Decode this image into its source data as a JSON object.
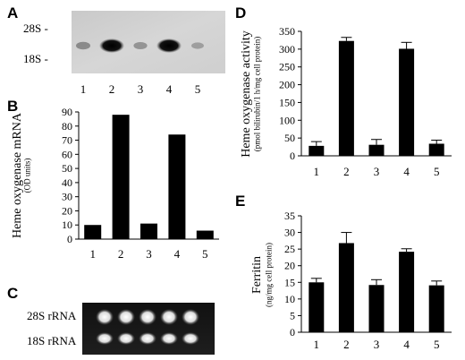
{
  "panels": {
    "A": {
      "letter": "A",
      "marker_28s": "28S -",
      "marker_18s": "18S -",
      "lanes": [
        "1",
        "2",
        "3",
        "4",
        "5"
      ],
      "band_intensity": [
        0.25,
        1.0,
        0.2,
        1.0,
        0.12
      ]
    },
    "C": {
      "letter": "C",
      "label_28s": "28S rRNA",
      "label_18s": "18S rRNA"
    }
  },
  "chart_data": [
    {
      "panel": "B",
      "type": "bar",
      "categories": [
        "1",
        "2",
        "3",
        "4",
        "5"
      ],
      "values": [
        10,
        88,
        11,
        74,
        6
      ],
      "ylabel": "Heme oxygenase mRNA",
      "ylabel_sub": "(OD units)",
      "ylim": [
        0,
        90
      ],
      "yticks": [
        0,
        10,
        20,
        30,
        40,
        50,
        60,
        70,
        80,
        90
      ],
      "grid": false
    },
    {
      "panel": "D",
      "type": "bar",
      "categories": [
        "1",
        "2",
        "3",
        "4",
        "5"
      ],
      "values": [
        28,
        323,
        31,
        301,
        34
      ],
      "errors": [
        12,
        10,
        15,
        18,
        10
      ],
      "ylabel": "Heme oxygenase activity",
      "ylabel_sub": "(pmol bilirubin/1 h/mg cell protein)",
      "ylim": [
        0,
        350
      ],
      "yticks": [
        0,
        50,
        100,
        150,
        200,
        250,
        300,
        350
      ],
      "grid": false
    },
    {
      "panel": "E",
      "type": "bar",
      "categories": [
        "1",
        "2",
        "3",
        "4",
        "5"
      ],
      "values": [
        15,
        26.8,
        14.2,
        24.2,
        14.1
      ],
      "errors": [
        1.2,
        3.2,
        1.6,
        0.9,
        1.3
      ],
      "ylabel": "Ferritin",
      "ylabel_sub": "(ng/mg cell protein)",
      "ylim": [
        0,
        35
      ],
      "yticks": [
        0,
        5,
        10,
        15,
        20,
        25,
        30,
        35
      ],
      "grid": false
    }
  ]
}
